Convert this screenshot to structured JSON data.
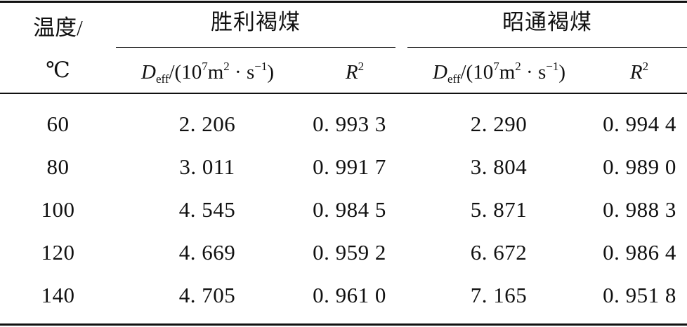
{
  "table": {
    "header": {
      "temp_label": "温度/",
      "temp_unit": "℃",
      "groups": [
        {
          "name": "胜利褐煤",
          "deff_prefix": "D",
          "deff_sub": "eff",
          "deff_mid": "/(10",
          "deff_exp1": "7",
          "deff_unit": "m",
          "deff_exp2": "2",
          "deff_dot": " · s",
          "deff_exp3": "−1",
          "deff_close": ")",
          "r_label": "R",
          "r_exp": "2"
        },
        {
          "name": "昭通褐煤",
          "deff_prefix": "D",
          "deff_sub": "eff",
          "deff_mid": "/(10",
          "deff_exp1": "7",
          "deff_unit": "m",
          "deff_exp2": "2",
          "deff_dot": " · s",
          "deff_exp3": "−1",
          "deff_close": ")",
          "r_label": "R",
          "r_exp": "2"
        }
      ]
    },
    "rows": [
      {
        "temp": "60",
        "sl_deff": "2. 206",
        "sl_r2": "0. 993 3",
        "zt_deff": "2. 290",
        "zt_r2": "0. 994 4"
      },
      {
        "temp": "80",
        "sl_deff": "3. 011",
        "sl_r2": "0. 991 7",
        "zt_deff": "3. 804",
        "zt_r2": "0. 989 0"
      },
      {
        "temp": "100",
        "sl_deff": "4. 545",
        "sl_r2": "0. 984 5",
        "zt_deff": "5. 871",
        "zt_r2": "0. 988 3"
      },
      {
        "temp": "120",
        "sl_deff": "4. 669",
        "sl_r2": "0. 959 2",
        "zt_deff": "6. 672",
        "zt_r2": "0. 986 4"
      },
      {
        "temp": "140",
        "sl_deff": "4. 705",
        "sl_r2": "0. 961 0",
        "zt_deff": "7. 165",
        "zt_r2": "0. 951 8"
      }
    ]
  }
}
